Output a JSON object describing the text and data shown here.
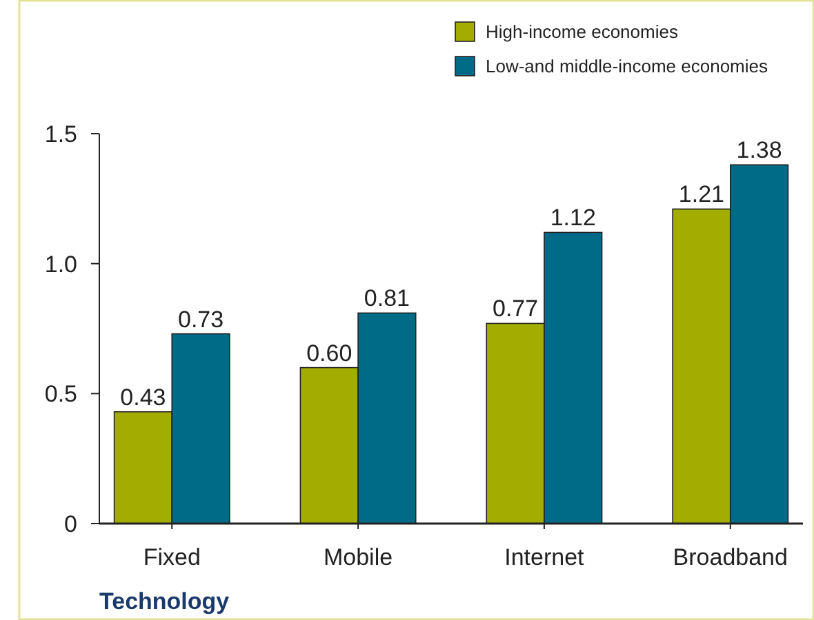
{
  "chart_data": {
    "type": "bar",
    "xlabel": "Technology",
    "categories": [
      "Fixed",
      "Mobile",
      "Internet",
      "Broadband"
    ],
    "series": [
      {
        "name": "High-income economies",
        "color": "#a3ac00",
        "values": [
          0.43,
          0.6,
          0.77,
          1.21
        ],
        "value_labels": [
          "0.43",
          "0.60",
          "0.77",
          "1.21"
        ]
      },
      {
        "name": "Low-and middle-income economies",
        "color": "#006b86",
        "values": [
          0.73,
          0.81,
          1.12,
          1.38
        ],
        "value_labels": [
          "0.73",
          "0.81",
          "1.12",
          "1.38"
        ]
      }
    ],
    "ylim": [
      0,
      1.5
    ],
    "yticks": [
      0,
      {
        "value": 0.5,
        "label": "0.5"
      },
      {
        "value": 1,
        "label": "1.0"
      },
      1.5
    ],
    "legend": "top right",
    "grid": false
  }
}
